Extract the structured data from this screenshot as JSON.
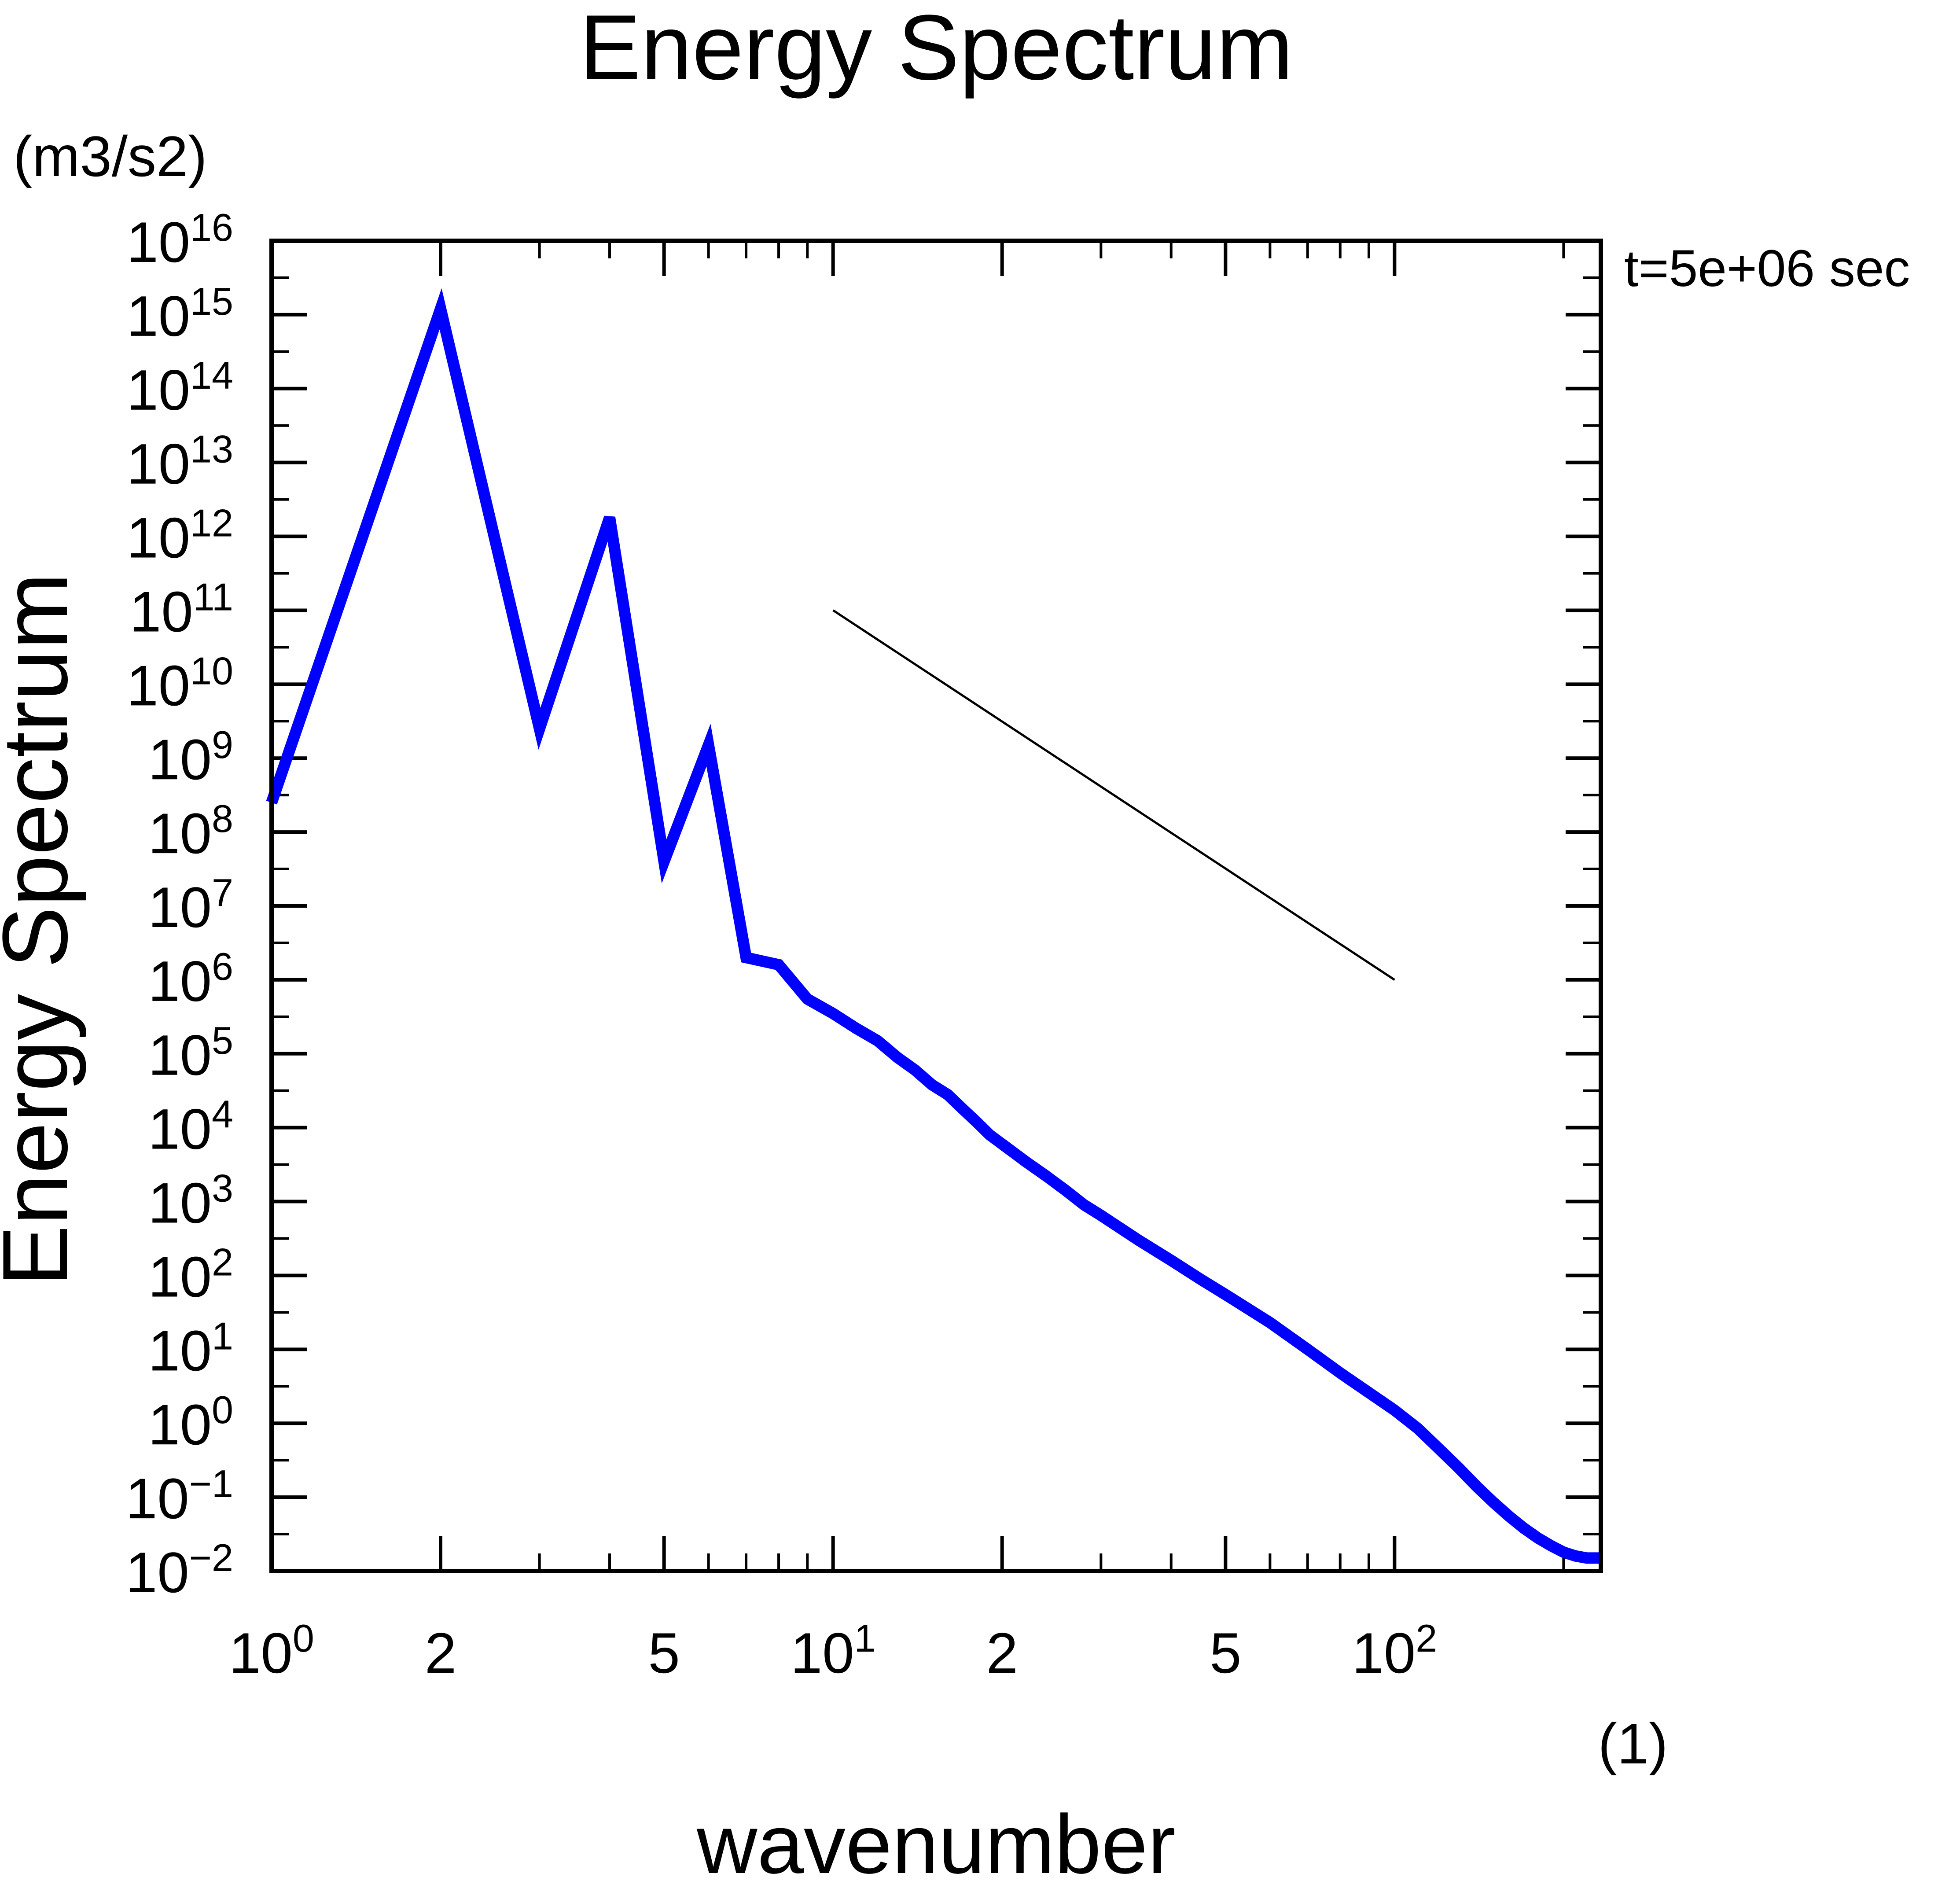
{
  "chart_data": {
    "type": "line",
    "title": "Energy Spectrum",
    "xlabel": "wavenumber",
    "ylabel": "Energy Spectrum",
    "x_units": "(1)",
    "y_units": "(m3/s2)",
    "annotation": "t=5e+06 sec",
    "x_scale": "log",
    "y_scale": "log",
    "xlim": [
      1,
      233
    ],
    "ylim": [
      0.01,
      1e+16
    ],
    "x_ticks": [
      {
        "value": 1,
        "base": "10",
        "exp": "0"
      },
      {
        "value": 2,
        "base": "2",
        "exp": ""
      },
      {
        "value": 5,
        "base": "5",
        "exp": ""
      },
      {
        "value": 10,
        "base": "10",
        "exp": "1"
      },
      {
        "value": 20,
        "base": "2",
        "exp": ""
      },
      {
        "value": 50,
        "base": "5",
        "exp": ""
      },
      {
        "value": 100,
        "base": "10",
        "exp": "2"
      }
    ],
    "y_ticks": [
      {
        "value": 1e+16,
        "base": "10",
        "exp": "16"
      },
      {
        "value": 1000000000000000.0,
        "base": "10",
        "exp": "15"
      },
      {
        "value": 100000000000000.0,
        "base": "10",
        "exp": "14"
      },
      {
        "value": 10000000000000.0,
        "base": "10",
        "exp": "13"
      },
      {
        "value": 1000000000000.0,
        "base": "10",
        "exp": "12"
      },
      {
        "value": 100000000000.0,
        "base": "10",
        "exp": "11"
      },
      {
        "value": 10000000000.0,
        "base": "10",
        "exp": "10"
      },
      {
        "value": 1000000000.0,
        "base": "10",
        "exp": "9"
      },
      {
        "value": 100000000.0,
        "base": "10",
        "exp": "8"
      },
      {
        "value": 10000000.0,
        "base": "10",
        "exp": "7"
      },
      {
        "value": 1000000.0,
        "base": "10",
        "exp": "6"
      },
      {
        "value": 100000.0,
        "base": "10",
        "exp": "5"
      },
      {
        "value": 10000.0,
        "base": "10",
        "exp": "4"
      },
      {
        "value": 1000.0,
        "base": "10",
        "exp": "3"
      },
      {
        "value": 100,
        "base": "10",
        "exp": "2"
      },
      {
        "value": 10,
        "base": "10",
        "exp": "1"
      },
      {
        "value": 1,
        "base": "10",
        "exp": "0"
      },
      {
        "value": 0.1,
        "base": "10",
        "exp": "−1"
      },
      {
        "value": 0.01,
        "base": "10",
        "exp": "−2"
      }
    ],
    "grid": false,
    "series": [
      {
        "color": "#0000ff",
        "x": [
          1,
          2,
          3,
          4,
          5,
          6,
          7,
          8,
          9,
          10,
          11,
          12,
          13,
          14,
          15,
          16,
          17,
          18,
          19,
          20,
          22,
          24,
          26,
          28,
          30,
          35,
          40,
          45,
          50,
          60,
          70,
          80,
          90,
          100,
          110,
          120,
          130,
          140,
          150,
          160,
          170,
          180,
          190,
          200,
          210,
          220,
          233
        ],
        "y": [
          250000000.0,
          1200000000000000.0,
          2500000000.0,
          1800000000000.0,
          40000000.0,
          1500000000.0,
          2000000.0,
          1600000.0,
          550000.0,
          350000.0,
          220000.0,
          150000.0,
          90000.0,
          60000.0,
          38000.0,
          28000.0,
          18000.0,
          12000.0,
          8000.0,
          6000.0,
          3500.0,
          2200.0,
          1400.0,
          900.0,
          650.0,
          300.0,
          160.0,
          90.0,
          55.0,
          23.0,
          10.0,
          4.8,
          2.6,
          1.5,
          0.85,
          0.45,
          0.25,
          0.14,
          0.085,
          0.055,
          0.038,
          0.028,
          0.022,
          0.018,
          0.016,
          0.015,
          0.015
        ]
      },
      {
        "color": "#000000",
        "x": [
          10,
          100
        ],
        "y": [
          100000000000.0,
          1000000.0
        ]
      }
    ]
  }
}
